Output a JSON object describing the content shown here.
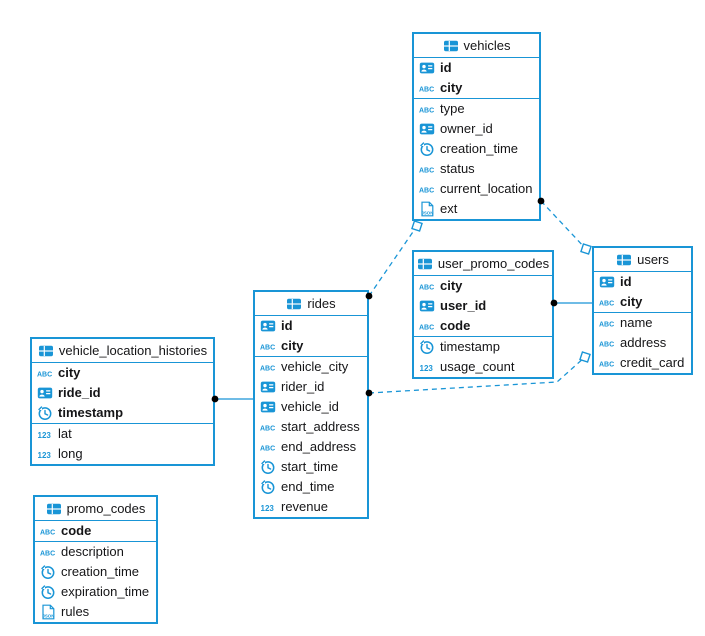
{
  "diagram": {
    "colors": {
      "accent": "#1995d6",
      "text": "#151517",
      "background": "#ffffff",
      "marker_dot": "#000000"
    },
    "tables": [
      {
        "id": "vehicles",
        "title": "vehicles",
        "primary_fields": [
          {
            "name": "id",
            "type": "id"
          },
          {
            "name": "city",
            "type": "text"
          }
        ],
        "fields": [
          {
            "name": "type",
            "type": "text"
          },
          {
            "name": "owner_id",
            "type": "id"
          },
          {
            "name": "creation_time",
            "type": "time"
          },
          {
            "name": "status",
            "type": "text"
          },
          {
            "name": "current_location",
            "type": "text"
          },
          {
            "name": "ext",
            "type": "json"
          }
        ]
      },
      {
        "id": "user_promo_codes",
        "title": "user_promo_codes",
        "primary_fields": [
          {
            "name": "city",
            "type": "text"
          },
          {
            "name": "user_id",
            "type": "id"
          },
          {
            "name": "code",
            "type": "text"
          }
        ],
        "fields": [
          {
            "name": "timestamp",
            "type": "time"
          },
          {
            "name": "usage_count",
            "type": "number"
          }
        ]
      },
      {
        "id": "users",
        "title": "users",
        "primary_fields": [
          {
            "name": "id",
            "type": "id"
          },
          {
            "name": "city",
            "type": "text"
          }
        ],
        "fields": [
          {
            "name": "name",
            "type": "text"
          },
          {
            "name": "address",
            "type": "text"
          },
          {
            "name": "credit_card",
            "type": "text"
          }
        ]
      },
      {
        "id": "rides",
        "title": "rides",
        "primary_fields": [
          {
            "name": "id",
            "type": "id"
          },
          {
            "name": "city",
            "type": "text"
          }
        ],
        "fields": [
          {
            "name": "vehicle_city",
            "type": "text"
          },
          {
            "name": "rider_id",
            "type": "id"
          },
          {
            "name": "vehicle_id",
            "type": "id"
          },
          {
            "name": "start_address",
            "type": "text"
          },
          {
            "name": "end_address",
            "type": "text"
          },
          {
            "name": "start_time",
            "type": "time"
          },
          {
            "name": "end_time",
            "type": "time"
          },
          {
            "name": "revenue",
            "type": "number"
          }
        ]
      },
      {
        "id": "vehicle_location_histories",
        "title": "vehicle_location_histories",
        "primary_fields": [
          {
            "name": "city",
            "type": "text"
          },
          {
            "name": "ride_id",
            "type": "id"
          },
          {
            "name": "timestamp",
            "type": "time"
          }
        ],
        "fields": [
          {
            "name": "lat",
            "type": "number"
          },
          {
            "name": "long",
            "type": "number"
          }
        ]
      },
      {
        "id": "promo_codes",
        "title": "promo_codes",
        "primary_fields": [
          {
            "name": "code",
            "type": "text"
          }
        ],
        "fields": [
          {
            "name": "description",
            "type": "text"
          },
          {
            "name": "creation_time",
            "type": "time"
          },
          {
            "name": "expiration_time",
            "type": "time"
          },
          {
            "name": "rules",
            "type": "json"
          }
        ]
      }
    ],
    "relations": [
      {
        "from": "rides",
        "to": "vehicles",
        "style": "dashed",
        "from_marker": "dot",
        "to_marker": "square"
      },
      {
        "from": "vehicles",
        "to": "users",
        "style": "dashed",
        "from_marker": "dot",
        "to_marker": "square"
      },
      {
        "from": "rides",
        "to": "users",
        "style": "dashed",
        "from_marker": "dot",
        "to_marker": "square"
      },
      {
        "from": "user_promo_codes",
        "to": "users",
        "style": "solid",
        "from_marker": "dot",
        "to_marker": "none"
      },
      {
        "from": "vehicle_location_histories",
        "to": "rides",
        "style": "solid",
        "from_marker": "dot",
        "to_marker": "none"
      }
    ]
  },
  "icons": {
    "table": "table-icon",
    "id": "id-card-icon",
    "text": "abc-text-icon",
    "time": "clock-icon",
    "number": "number-123-icon",
    "json": "json-icon"
  }
}
